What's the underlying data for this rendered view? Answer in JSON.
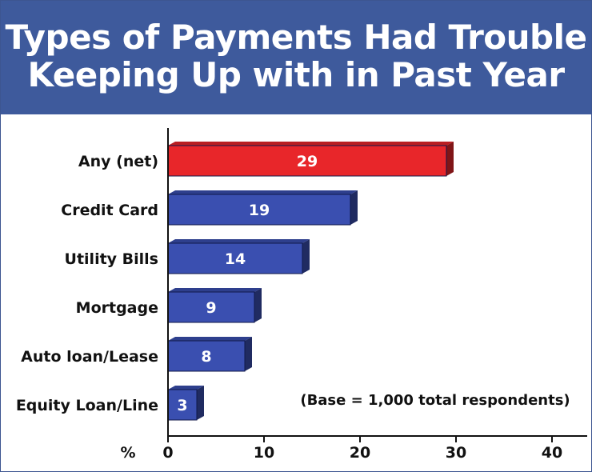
{
  "chart_data": {
    "type": "bar",
    "orientation": "horizontal",
    "title": "Types of Payments Had Trouble Keeping Up with in Past Year",
    "title_lines": [
      "Types of Payments Had Trouble",
      "Keeping Up with in Past Year"
    ],
    "categories": [
      "Any (net)",
      "Credit Card",
      "Utility Bills",
      "Mortgage",
      "Auto loan/Lease",
      "Equity Loan/Line"
    ],
    "values": [
      29,
      19,
      14,
      9,
      8,
      3
    ],
    "data_labels": [
      "29",
      "19",
      "14",
      "9",
      "8",
      "3"
    ],
    "bar_colors": [
      "#e8262a",
      "#3a4fb0",
      "#3a4fb0",
      "#3a4fb0",
      "#3a4fb0",
      "#3a4fb0"
    ],
    "axis_unit_label": "%",
    "x_ticks": [
      0,
      10,
      20,
      30,
      40
    ],
    "xlim": [
      0,
      40
    ],
    "grid": false,
    "annotation": "(Base = 1,000 total respondents)"
  },
  "colors": {
    "header_background": "#3e5a9c",
    "highlight_bar": "#e8262a",
    "highlight_bar_side": "#a3171b",
    "bar": "#3a4fb0",
    "bar_side": "#1d2a6b",
    "axis": "#111111"
  }
}
